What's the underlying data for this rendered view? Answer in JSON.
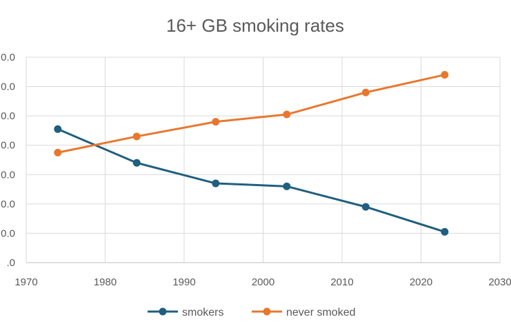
{
  "chart_data": {
    "type": "line",
    "title": "16+ GB smoking rates",
    "xlabel": "",
    "ylabel": "",
    "xlim": [
      1970,
      2030
    ],
    "ylim": [
      0,
      70
    ],
    "x_ticks": [
      "1970",
      "1980",
      "1990",
      "2000",
      "2010",
      "2020",
      "2030"
    ],
    "y_ticks": [
      ".0",
      "0.0",
      "0.0",
      "0.0",
      "0.0",
      "0.0",
      "0.0",
      "0.0"
    ],
    "grid": true,
    "legend_position": "bottom",
    "x": [
      1974,
      1984,
      1994,
      2003,
      2013,
      2023
    ],
    "series": [
      {
        "name": "smokers",
        "color": "#1f5f7f",
        "values": [
          45.5,
          34.0,
          27.0,
          26.0,
          19.0,
          10.5
        ]
      },
      {
        "name": "never smoked",
        "color": "#e8772e",
        "values": [
          37.5,
          43.0,
          48.0,
          50.5,
          58.0,
          64.0
        ]
      }
    ]
  }
}
